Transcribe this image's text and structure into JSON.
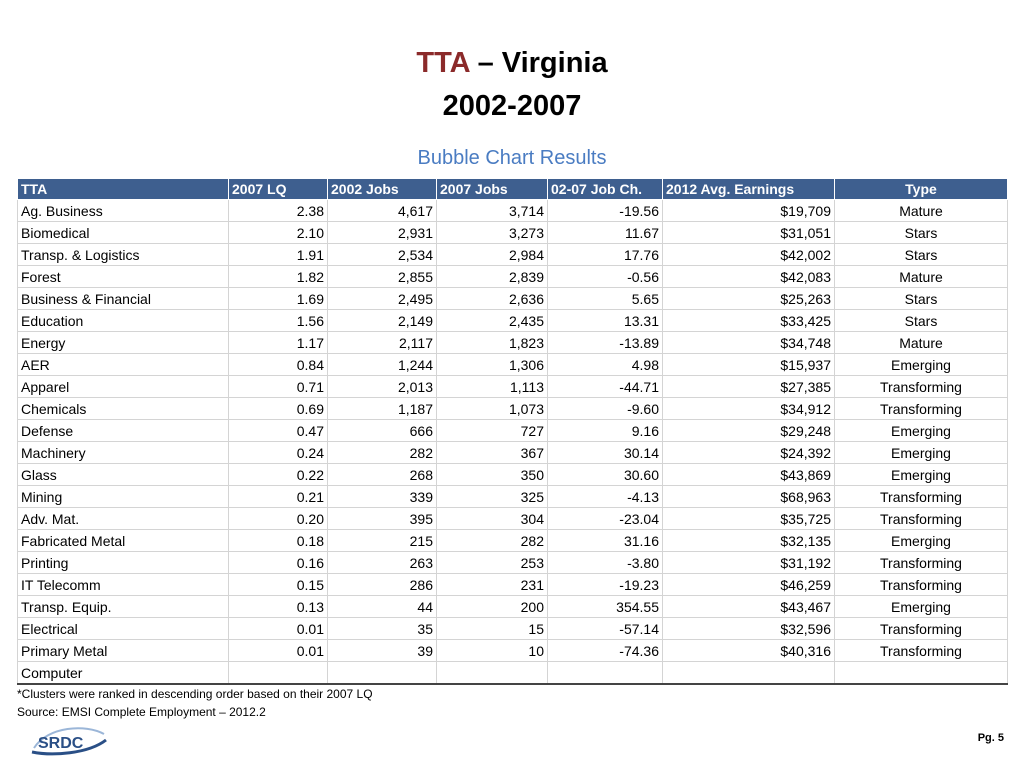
{
  "title": {
    "accent": "TTA",
    "rest": " – Virginia",
    "line2": "2002-2007"
  },
  "subtitle": "Bubble Chart Results",
  "table": {
    "headers": [
      "TTA",
      "2007 LQ",
      "2002 Jobs",
      "2007 Jobs",
      "02-07 Job Ch.",
      "2012 Avg. Earnings",
      "Type"
    ],
    "rows": [
      [
        "Ag. Business",
        "2.38",
        "4,617",
        "3,714",
        "-19.56",
        "$19,709",
        "Mature"
      ],
      [
        "Biomedical",
        "2.10",
        "2,931",
        "3,273",
        "11.67",
        "$31,051",
        "Stars"
      ],
      [
        "Transp. & Logistics",
        "1.91",
        "2,534",
        "2,984",
        "17.76",
        "$42,002",
        "Stars"
      ],
      [
        "Forest",
        "1.82",
        "2,855",
        "2,839",
        "-0.56",
        "$42,083",
        "Mature"
      ],
      [
        "Business & Financial",
        "1.69",
        "2,495",
        "2,636",
        "5.65",
        "$25,263",
        "Stars"
      ],
      [
        "Education",
        "1.56",
        "2,149",
        "2,435",
        "13.31",
        "$33,425",
        "Stars"
      ],
      [
        "Energy",
        "1.17",
        "2,117",
        "1,823",
        "-13.89",
        "$34,748",
        "Mature"
      ],
      [
        "AER",
        "0.84",
        "1,244",
        "1,306",
        "4.98",
        "$15,937",
        "Emerging"
      ],
      [
        "Apparel",
        "0.71",
        "2,013",
        "1,113",
        "-44.71",
        "$27,385",
        "Transforming"
      ],
      [
        "Chemicals",
        "0.69",
        "1,187",
        "1,073",
        "-9.60",
        "$34,912",
        "Transforming"
      ],
      [
        "Defense",
        "0.47",
        "666",
        "727",
        "9.16",
        "$29,248",
        "Emerging"
      ],
      [
        "Machinery",
        "0.24",
        "282",
        "367",
        "30.14",
        "$24,392",
        "Emerging"
      ],
      [
        "Glass",
        "0.22",
        "268",
        "350",
        "30.60",
        "$43,869",
        "Emerging"
      ],
      [
        "Mining",
        "0.21",
        "339",
        "325",
        "-4.13",
        "$68,963",
        "Transforming"
      ],
      [
        "Adv. Mat.",
        "0.20",
        "395",
        "304",
        "-23.04",
        "$35,725",
        "Transforming"
      ],
      [
        "Fabricated Metal",
        "0.18",
        "215",
        "282",
        "31.16",
        "$32,135",
        "Emerging"
      ],
      [
        "Printing",
        "0.16",
        "263",
        "253",
        "-3.80",
        "$31,192",
        "Transforming"
      ],
      [
        "IT Telecomm",
        "0.15",
        "286",
        "231",
        "-19.23",
        "$46,259",
        "Transforming"
      ],
      [
        "Transp. Equip.",
        "0.13",
        "44",
        "200",
        "354.55",
        "$43,467",
        "Emerging"
      ],
      [
        "Electrical",
        "0.01",
        "35",
        "15",
        "-57.14",
        "$32,596",
        "Transforming"
      ],
      [
        "Primary Metal",
        "0.01",
        "39",
        "10",
        "-74.36",
        "$40,316",
        "Transforming"
      ],
      [
        "Computer",
        "",
        "",
        "",
        "",
        "",
        ""
      ]
    ]
  },
  "notes": {
    "ranking": "*Clusters were ranked in descending order based on their 2007 LQ",
    "source": "Source: EMSI Complete Employment – 2012.2"
  },
  "logo_text": "SRDC",
  "page_number": "Pg. 5",
  "colors": {
    "accent": "#8b2a2a",
    "subtitle": "#4a7cc2",
    "header_bg": "#3e5f8f"
  }
}
